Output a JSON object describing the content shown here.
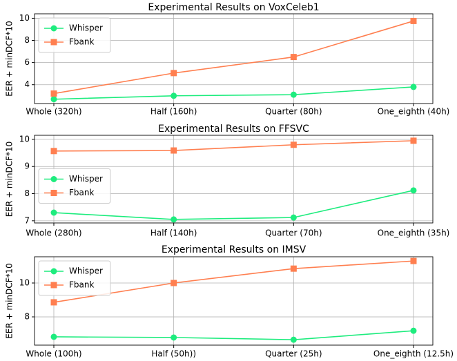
{
  "chart_data": [
    {
      "type": "line",
      "title": "Experimental Results on VoxCeleb1",
      "y_label": "EER + minDCF*10",
      "categories": [
        "Whole (320h)",
        "Half (160h)",
        "Quarter (80h)",
        "One_eighth (40h)"
      ],
      "series": [
        {
          "name": "Whisper",
          "color": "#1eec7e",
          "marker": "circle",
          "values": [
            2.69,
            3.0,
            3.1,
            3.8
          ]
        },
        {
          "name": "Fbank",
          "color": "#ff7f50",
          "marker": "square",
          "values": [
            3.2,
            5.05,
            6.5,
            9.75
          ]
        }
      ],
      "ylim": [
        2.3,
        10.4
      ],
      "yticks": [
        4,
        6,
        8,
        10
      ],
      "grid": true,
      "legend": "upper left"
    },
    {
      "type": "line",
      "title": "Experimental Results on FFSVC",
      "y_label": "EER + minDCF*10",
      "categories": [
        "Whole (280h)",
        "Half (140h)",
        "Quarter (70h)",
        "One_eighth (35h)"
      ],
      "series": [
        {
          "name": "Whisper",
          "color": "#1eec7e",
          "marker": "circle",
          "values": [
            7.3,
            7.05,
            7.12,
            8.12
          ]
        },
        {
          "name": "Fbank",
          "color": "#ff7f50",
          "marker": "square",
          "values": [
            9.57,
            9.59,
            9.8,
            9.95
          ]
        }
      ],
      "ylim": [
        6.92,
        10.15
      ],
      "yticks": [
        7,
        8,
        9,
        10
      ],
      "grid": true,
      "legend": "center left"
    },
    {
      "type": "line",
      "title": "Experimental Results on IMSV",
      "y_label": "EER + minDCF*10",
      "categories": [
        "Whole (100h)",
        "Half (50h))",
        "Quarter (25h)",
        "One_eighth (12.5h)"
      ],
      "series": [
        {
          "name": "Whisper",
          "color": "#1eec7e",
          "marker": "circle",
          "values": [
            6.82,
            6.78,
            6.65,
            7.18
          ]
        },
        {
          "name": "Fbank",
          "color": "#ff7f50",
          "marker": "square",
          "values": [
            8.86,
            10.0,
            10.85,
            11.3
          ]
        }
      ],
      "ylim": [
        6.33,
        11.55
      ],
      "yticks": [
        8,
        10
      ],
      "grid": true,
      "legend": "upper left"
    }
  ]
}
